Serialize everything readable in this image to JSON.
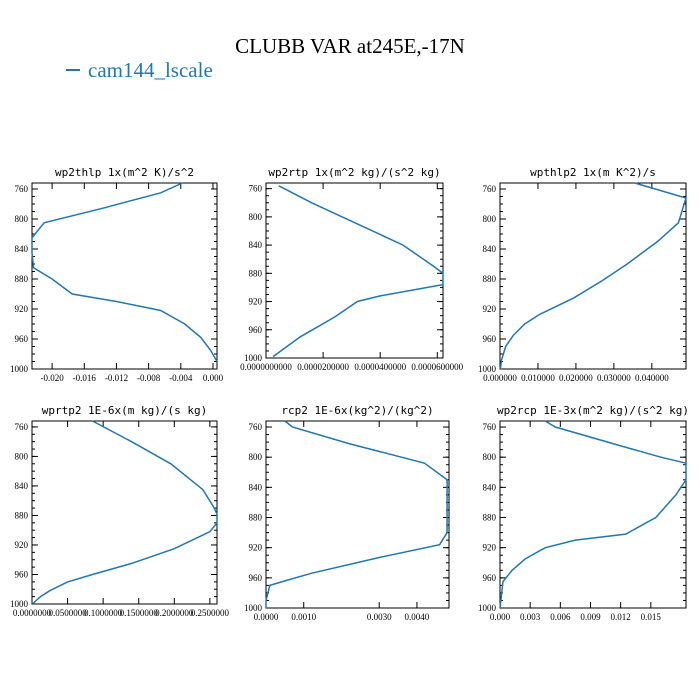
{
  "title": "CLUBB VAR at245E,-17N",
  "legend": {
    "label": "cam144_lscale",
    "color": "#1f77b4"
  },
  "chart_data": [
    {
      "type": "line",
      "title": "wp2thlp  1x(m^2 K)/s^2",
      "xlim": [
        -0.0225,
        0.0005
      ],
      "ylim": [
        1000,
        752
      ],
      "y_inverted": true,
      "xticks": [
        "-0.020",
        "-0.016",
        "-0.012",
        "-0.008",
        "-0.004",
        "0.000"
      ],
      "xtick_values": [
        -0.02,
        -0.016,
        -0.012,
        -0.008,
        -0.004,
        0.0
      ],
      "yticks": [
        760,
        800,
        840,
        880,
        920,
        960,
        1000
      ],
      "series": [
        {
          "x": [
            -0.0038,
            -0.0065,
            -0.0135,
            -0.021,
            -0.0225,
            -0.0225,
            -0.0223,
            -0.02,
            -0.0175,
            -0.012,
            -0.0065,
            -0.0035,
            -0.0015,
            -0.0003,
            0.0005
          ],
          "y": [
            752,
            765,
            785,
            805,
            825,
            845,
            865,
            880,
            900,
            910,
            922,
            940,
            958,
            975,
            990
          ]
        }
      ]
    },
    {
      "type": "line",
      "title": "wp2rtp  1x(m^2 kg)/(s^2 kg)",
      "xlim": [
        0,
        6.2e-05
      ],
      "ylim": [
        1000,
        752
      ],
      "y_inverted": true,
      "xticks": [
        "0.0000000000",
        "0.0000200000",
        "0.0000400000",
        "0.0000600000"
      ],
      "xtick_values": [
        0,
        2e-05,
        4e-05,
        6e-05
      ],
      "yticks": [
        760,
        800,
        840,
        880,
        920,
        960,
        1000
      ],
      "series": [
        {
          "x": [
            4.5e-06,
            1.6e-05,
            3.2e-05,
            4.8e-05,
            5.8e-05,
            6.2e-05,
            6.2e-05,
            4e-05,
            3.2e-05,
            2.4e-05,
            1.2e-05,
            2.5e-06
          ],
          "y": [
            756,
            780,
            810,
            840,
            868,
            880,
            896,
            912,
            920,
            942,
            970,
            998
          ]
        }
      ]
    },
    {
      "type": "line",
      "title": "wpthlp2  1x(m K^2)/s",
      "xlim": [
        0,
        0.049
      ],
      "ylim": [
        1000,
        752
      ],
      "y_inverted": true,
      "xticks": [
        "0.000000",
        "0.010000",
        "0.020000",
        "0.030000",
        "0.040000"
      ],
      "xtick_values": [
        0,
        0.01,
        0.02,
        0.03,
        0.04
      ],
      "yticks": [
        760,
        800,
        840,
        880,
        920,
        960,
        1000
      ],
      "series": [
        {
          "x": [
            0.0355,
            0.049,
            0.047,
            0.0415,
            0.0335,
            0.027,
            0.0195,
            0.0105,
            0.0065,
            0.0035,
            0.0015,
            0.0004,
            0.0001
          ],
          "y": [
            752,
            772,
            805,
            830,
            860,
            882,
            905,
            927,
            940,
            955,
            970,
            988,
            1000
          ]
        }
      ]
    },
    {
      "type": "line",
      "title": "wprtp2  1E-6x(m kg)/(s kg)",
      "xlim": [
        0,
        0.26
      ],
      "ylim": [
        1000,
        752
      ],
      "y_inverted": true,
      "xticks": [
        "0.0000000",
        "0.0500000",
        "0.1000000",
        "0.1500000",
        "0.2000000",
        "0.2500000"
      ],
      "xtick_values": [
        0,
        0.05,
        0.1,
        0.15,
        0.2,
        0.25
      ],
      "yticks": [
        760,
        800,
        840,
        880,
        920,
        960,
        1000
      ],
      "series": [
        {
          "x": [
            0.085,
            0.14,
            0.195,
            0.24,
            0.255,
            0.26,
            0.26,
            0.25,
            0.2,
            0.14,
            0.085,
            0.05,
            0.025,
            0.012,
            0.005,
            0.001
          ],
          "y": [
            752,
            780,
            810,
            845,
            868,
            878,
            890,
            902,
            925,
            945,
            960,
            970,
            982,
            990,
            996,
            1000
          ]
        }
      ]
    },
    {
      "type": "line",
      "title": "rcp2  1E-6x(kg^2)/(kg^2)",
      "xlim": [
        0,
        0.00485
      ],
      "ylim": [
        1000,
        752
      ],
      "y_inverted": true,
      "xticks": [
        "0.0000",
        "0.0010",
        "0.0030",
        "0.0040"
      ],
      "xtick_values": [
        0,
        0.001,
        0.003,
        0.004
      ],
      "yticks": [
        760,
        800,
        840,
        880,
        920,
        960,
        1000
      ],
      "series": [
        {
          "x": [
            0.0005,
            0.0007,
            0.0022,
            0.0042,
            0.0048,
            0.0048,
            0.0046,
            0.003,
            0.0012,
            0.0005,
            0.0001,
            0.0,
            0.0
          ],
          "y": [
            752,
            760,
            782,
            808,
            830,
            900,
            916,
            933,
            954,
            964,
            970,
            990,
            1000
          ]
        }
      ]
    },
    {
      "type": "line",
      "title": "wp2rcp  1E-3x(m^2 kg)/(s^2 kg)",
      "xlim": [
        0,
        0.0185
      ],
      "ylim": [
        1000,
        752
      ],
      "y_inverted": true,
      "xticks": [
        "0.000",
        "0.003",
        "0.006",
        "0.009",
        "0.012",
        "0.015"
      ],
      "xtick_values": [
        0,
        0.003,
        0.006,
        0.009,
        0.012,
        0.015
      ],
      "yticks": [
        760,
        800,
        840,
        880,
        920,
        960,
        1000
      ],
      "series": [
        {
          "x": [
            0.0045,
            0.0055,
            0.0115,
            0.016,
            0.0185,
            0.0185,
            0.0175,
            0.0155,
            0.0125,
            0.0075,
            0.0045,
            0.0025,
            0.0012,
            0.0003,
            0.0
          ],
          "y": [
            752,
            760,
            783,
            800,
            808,
            830,
            850,
            880,
            902,
            910,
            920,
            935,
            950,
            965,
            1000
          ]
        }
      ]
    }
  ]
}
